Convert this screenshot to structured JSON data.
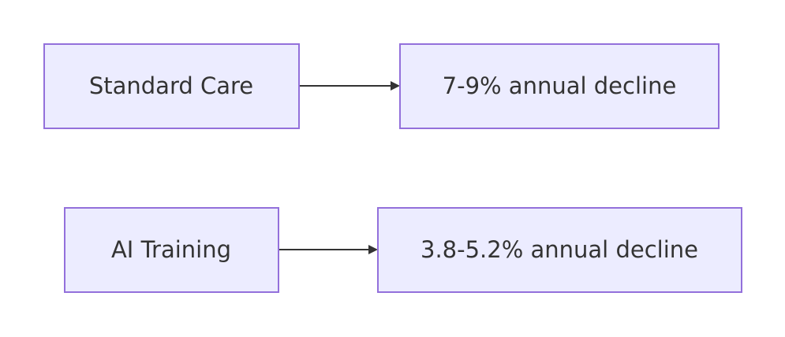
{
  "nodes": [
    {
      "label": "Standard Care"
    },
    {
      "label": "7-9% annual decline"
    },
    {
      "label": "AI Training"
    },
    {
      "label": "3.8-5.2% annual decline"
    }
  ]
}
